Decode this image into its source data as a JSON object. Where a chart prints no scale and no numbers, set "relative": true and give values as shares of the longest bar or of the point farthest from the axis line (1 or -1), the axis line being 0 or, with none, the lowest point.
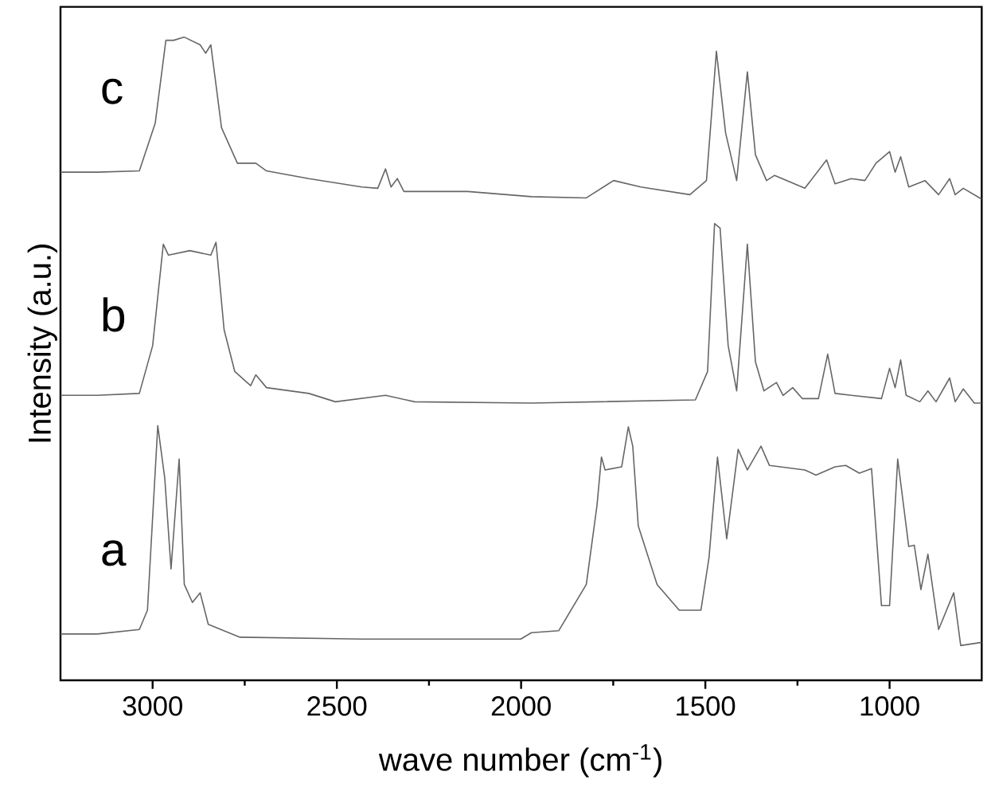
{
  "chart_data": {
    "type": "line",
    "relative": true,
    "xlabel": "wave number (cm$^{-1}$)",
    "ylabel": "Intensity (a.u.)",
    "xlim": [
      3250,
      750
    ],
    "xticks": [
      3000,
      {
        "value": 2750,
        "label": null
      },
      2500,
      {
        "value": 2250,
        "label": null
      },
      2000,
      {
        "value": 1750,
        "label": null
      },
      1500,
      {
        "value": 1250,
        "label": null
      },
      1000
    ],
    "series": [
      {
        "name": "a",
        "color": "#666666",
        "x": [
          3250,
          3150,
          3036,
          3014,
          2986,
          2967,
          2950,
          2928,
          2914,
          2892,
          2871,
          2849,
          2763,
          2432,
          2001,
          1972,
          1898,
          1823,
          1794,
          1782,
          1772,
          1727,
          1709,
          1697,
          1682,
          1631,
          1571,
          1512,
          1490,
          1467,
          1442,
          1411,
          1386,
          1349,
          1326,
          1230,
          1200,
          1148,
          1119,
          1082,
          1049,
          1022,
          1000,
          978,
          948,
          933,
          915,
          896,
          867,
          826,
          807,
          750
        ],
        "values": [
          0.072,
          0.072,
          0.079,
          0.109,
          0.396,
          0.314,
          0.173,
          0.344,
          0.149,
          0.121,
          0.136,
          0.087,
          0.067,
          0.064,
          0.064,
          0.074,
          0.077,
          0.149,
          0.272,
          0.347,
          0.327,
          0.332,
          0.394,
          0.364,
          0.24,
          0.149,
          0.109,
          0.109,
          0.191,
          0.347,
          0.22,
          0.359,
          0.327,
          0.364,
          0.334,
          0.327,
          0.319,
          0.332,
          0.334,
          0.322,
          0.329,
          0.116,
          0.116,
          0.344,
          0.208,
          0.21,
          0.141,
          0.196,
          0.079,
          0.136,
          0.054,
          0.059
        ]
      },
      {
        "name": "b",
        "color": "#666666",
        "x": [
          3250,
          3150,
          3036,
          3000,
          2971,
          2957,
          2899,
          2842,
          2828,
          2806,
          2777,
          2734,
          2720,
          2691,
          2576,
          2504,
          2368,
          2289,
          1972,
          1527,
          1494,
          1475,
          1460,
          1438,
          1415,
          1386,
          1364,
          1341,
          1307,
          1289,
          1263,
          1237,
          1193,
          1168,
          1148,
          1104,
          1022,
          1000,
          985,
          970,
          955,
          918,
          896,
          874,
          837,
          822,
          800,
          770,
          750
        ],
        "values": [
          0.443,
          0.443,
          0.446,
          0.52,
          0.678,
          0.661,
          0.668,
          0.661,
          0.681,
          0.545,
          0.48,
          0.458,
          0.475,
          0.455,
          0.446,
          0.433,
          0.443,
          0.433,
          0.431,
          0.436,
          0.48,
          0.71,
          0.703,
          0.52,
          0.45,
          0.678,
          0.495,
          0.45,
          0.463,
          0.443,
          0.455,
          0.438,
          0.438,
          0.507,
          0.446,
          0.443,
          0.438,
          0.485,
          0.455,
          0.498,
          0.443,
          0.433,
          0.45,
          0.433,
          0.47,
          0.433,
          0.453,
          0.431,
          0.431
        ]
      },
      {
        "name": "c",
        "color": "#666666",
        "x": [
          3250,
          3150,
          3036,
          2993,
          2964,
          2943,
          2914,
          2871,
          2856,
          2842,
          2828,
          2813,
          2770,
          2720,
          2691,
          2576,
          2432,
          2389,
          2368,
          2353,
          2336,
          2318,
          2145,
          1972,
          1823,
          1749,
          1675,
          1542,
          1497,
          1470,
          1445,
          1415,
          1386,
          1364,
          1334,
          1312,
          1230,
          1171,
          1148,
          1104,
          1067,
          1037,
          1000,
          985,
          970,
          948,
          904,
          867,
          837,
          822,
          800,
          750
        ],
        "values": [
          0.79,
          0.79,
          0.792,
          0.866,
          0.995,
          0.995,
          1.0,
          0.988,
          0.975,
          0.988,
          0.926,
          0.859,
          0.804,
          0.804,
          0.792,
          0.78,
          0.767,
          0.765,
          0.795,
          0.767,
          0.78,
          0.76,
          0.76,
          0.752,
          0.75,
          0.777,
          0.767,
          0.755,
          0.777,
          0.978,
          0.851,
          0.777,
          0.946,
          0.817,
          0.777,
          0.785,
          0.765,
          0.809,
          0.772,
          0.78,
          0.777,
          0.804,
          0.822,
          0.79,
          0.814,
          0.767,
          0.777,
          0.755,
          0.78,
          0.755,
          0.765,
          0.748
        ]
      }
    ]
  }
}
